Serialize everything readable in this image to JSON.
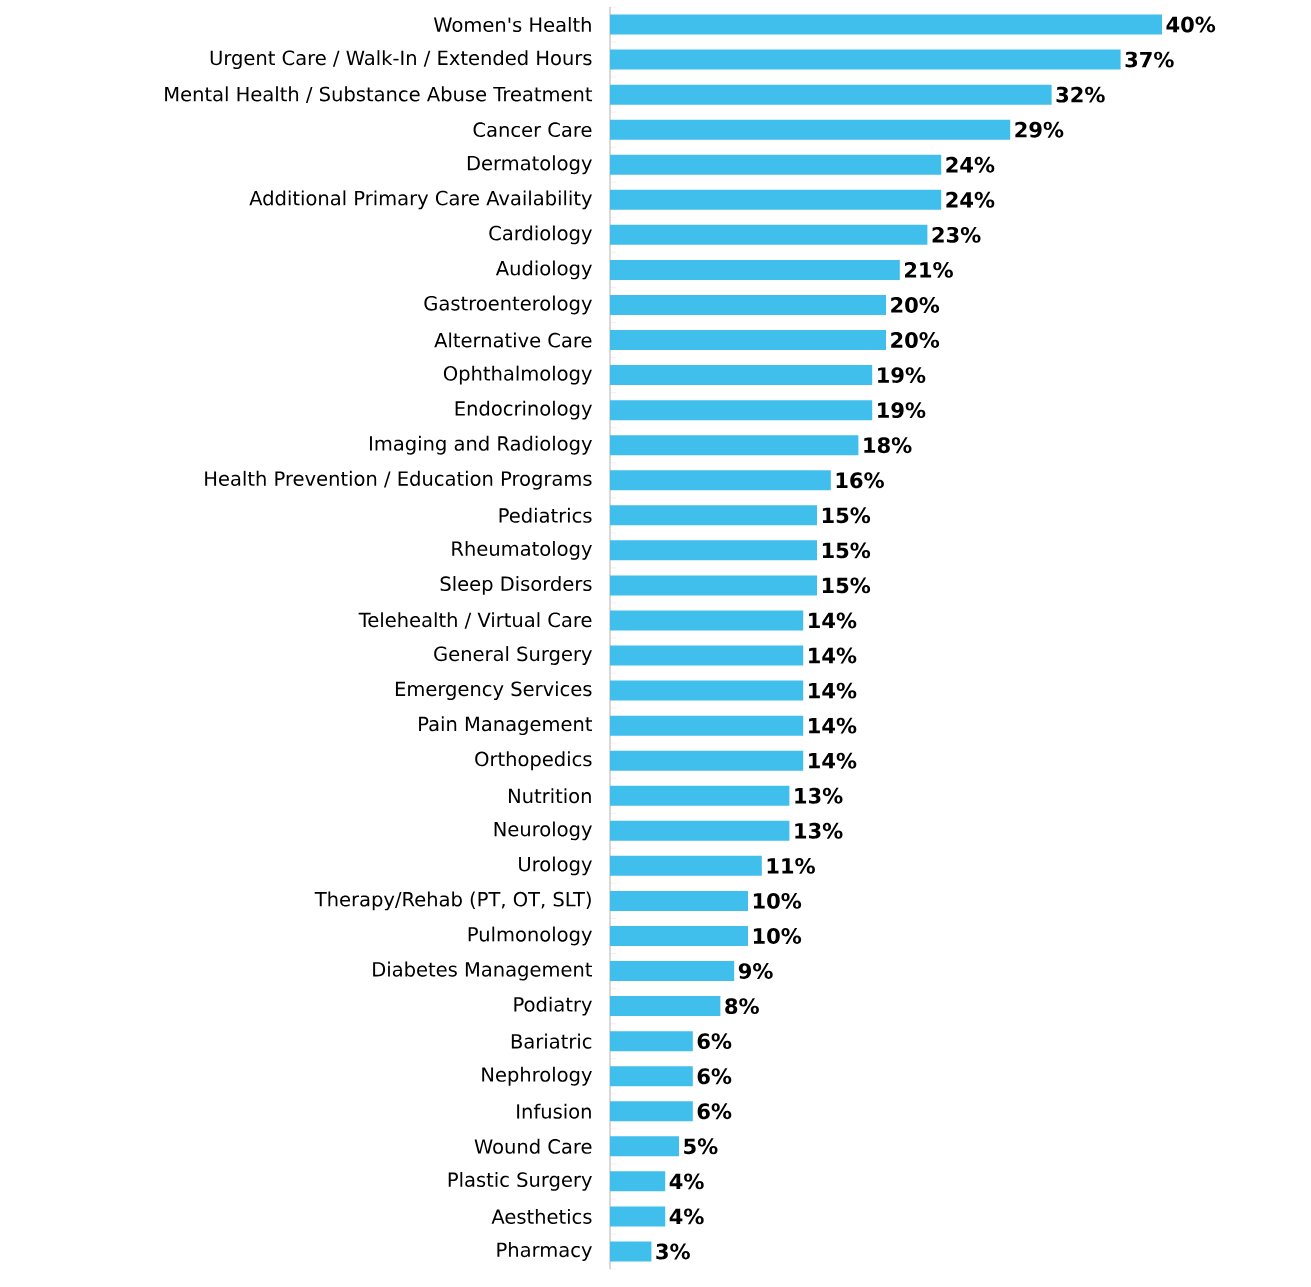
{
  "chart_data": {
    "type": "bar",
    "orientation": "horizontal",
    "color": "#41bfec",
    "tick_labels": "y",
    "categories": [
      "Women's Health",
      "Urgent Care / Walk-In / Extended Hours",
      "Mental Health / Substance Abuse Treatment",
      "Cancer Care",
      "Dermatology",
      "Additional Primary Care Availability",
      "Cardiology",
      "Audiology",
      "Gastroenterology",
      "Alternative Care",
      "Ophthalmology",
      "Endocrinology",
      "Imaging and Radiology",
      "Health Prevention / Education Programs",
      "Pediatrics",
      "Rheumatology",
      "Sleep Disorders",
      "Telehealth / Virtual Care",
      "General Surgery",
      "Emergency Services",
      "Pain Management",
      "Orthopedics",
      "Nutrition",
      "Neurology",
      "Urology",
      "Therapy/Rehab (PT, OT, SLT)",
      "Pulmonology",
      "Diabetes Management",
      "Podiatry",
      "Bariatric",
      "Nephrology",
      "Infusion",
      "Wound Care",
      "Plastic Surgery",
      "Aesthetics",
      "Pharmacy"
    ],
    "values": [
      40,
      37,
      32,
      29,
      24,
      24,
      23,
      21,
      20,
      20,
      19,
      19,
      18,
      16,
      15,
      15,
      15,
      14,
      14,
      14,
      14,
      14,
      13,
      13,
      11,
      10,
      10,
      9,
      8,
      6,
      6,
      6,
      5,
      4,
      4,
      3
    ],
    "value_labels": [
      "40%",
      "37%",
      "32%",
      "29%",
      "24%",
      "24%",
      "23%",
      "21%",
      "20%",
      "20%",
      "19%",
      "19%",
      "18%",
      "16%",
      "15%",
      "15%",
      "15%",
      "14%",
      "14%",
      "14%",
      "14%",
      "14%",
      "13%",
      "13%",
      "11%",
      "10%",
      "10%",
      "9%",
      "8%",
      "6%",
      "6%",
      "6%",
      "5%",
      "4%",
      "4%",
      "3%"
    ]
  }
}
